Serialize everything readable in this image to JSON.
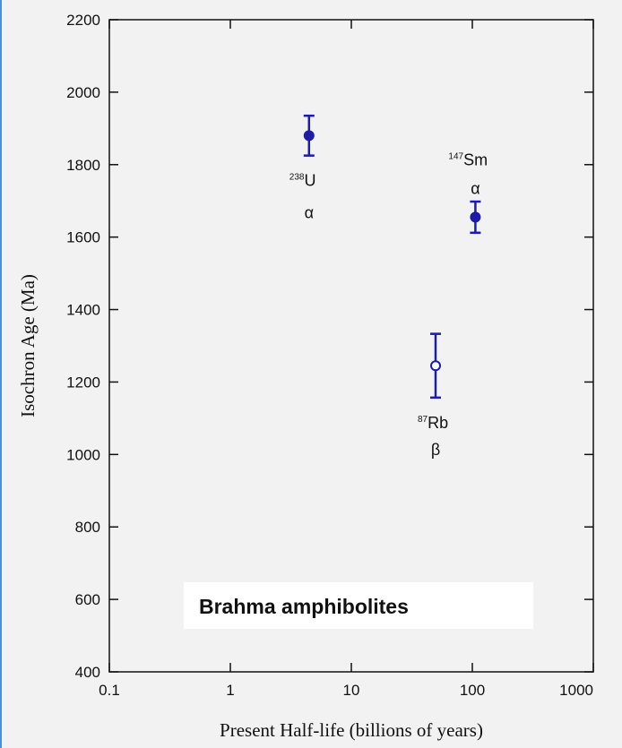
{
  "chart_data": {
    "type": "scatter",
    "xlabel": "Present Half-life (billions of years)",
    "ylabel": "Isochron Age (Ma)",
    "xscale": "log",
    "xlim": [
      0.1,
      1000
    ],
    "xticks": [
      0.1,
      1,
      10,
      100,
      1000
    ],
    "ylim": [
      400,
      2200
    ],
    "yticks": [
      400,
      600,
      800,
      1000,
      1200,
      1400,
      1600,
      1800,
      2000,
      2200
    ],
    "series": [
      {
        "color": "#1c1ca8",
        "marker": "filled",
        "x": [
          4.47,
          106
        ],
        "values": [
          1880,
          1655
        ],
        "errors": [
          55,
          43
        ]
      },
      {
        "color": "#1c1ca8",
        "marker": "open",
        "x": [
          49.7
        ],
        "values": [
          1245
        ],
        "errors": [
          88
        ]
      }
    ],
    "annotations": [
      {
        "mass": "238",
        "element": "U",
        "decay": "α"
      },
      {
        "mass": "147",
        "element": "Sm",
        "decay": "α"
      },
      {
        "mass": "87",
        "element": "Rb",
        "decay": "β"
      }
    ],
    "label": "Brahma amphibolites"
  }
}
